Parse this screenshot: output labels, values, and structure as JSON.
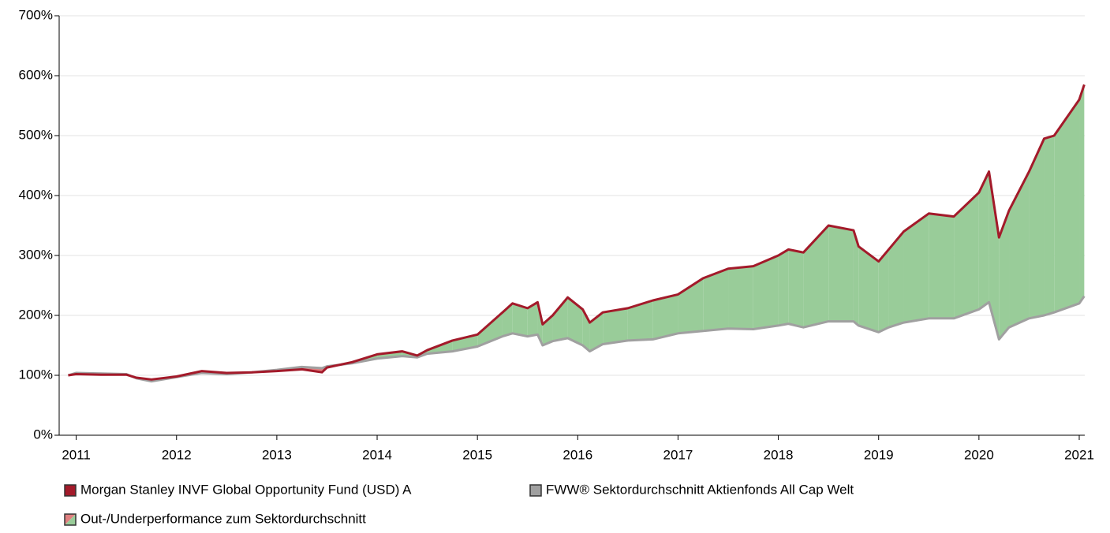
{
  "chart_data": {
    "type": "line",
    "x": [
      2010.92,
      2011.0,
      2011.25,
      2011.5,
      2011.6,
      2011.75,
      2012.0,
      2012.25,
      2012.5,
      2012.75,
      2013.0,
      2013.25,
      2013.45,
      2013.5,
      2013.75,
      2014.0,
      2014.25,
      2014.4,
      2014.5,
      2014.75,
      2015.0,
      2015.25,
      2015.35,
      2015.5,
      2015.6,
      2015.65,
      2015.75,
      2015.9,
      2016.05,
      2016.12,
      2016.25,
      2016.5,
      2016.75,
      2017.0,
      2017.25,
      2017.5,
      2017.75,
      2018.0,
      2018.1,
      2018.25,
      2018.5,
      2018.75,
      2018.8,
      2019.0,
      2019.1,
      2019.25,
      2019.5,
      2019.75,
      2020.0,
      2020.1,
      2020.2,
      2020.3,
      2020.5,
      2020.65,
      2020.75,
      2021.0,
      2021.05
    ],
    "series": [
      {
        "name": "Morgan Stanley INVF Global Opportunity Fund (USD) A",
        "color": "#a31a2a",
        "values": [
          100,
          102,
          101,
          101,
          96,
          93,
          98,
          107,
          104,
          105,
          107,
          110,
          105,
          113,
          122,
          135,
          140,
          133,
          142,
          158,
          168,
          205,
          220,
          212,
          222,
          185,
          200,
          230,
          210,
          188,
          205,
          212,
          225,
          235,
          262,
          278,
          282,
          300,
          310,
          305,
          350,
          342,
          315,
          290,
          310,
          340,
          370,
          365,
          405,
          440,
          330,
          375,
          440,
          495,
          500,
          560,
          585
        ]
      },
      {
        "name": "FWW® Sektordurchschnitt Aktienfonds All Cap Welt",
        "color": "#a0a0a0",
        "values": [
          100,
          104,
          103,
          102,
          95,
          90,
          97,
          104,
          102,
          105,
          109,
          114,
          112,
          115,
          120,
          128,
          132,
          130,
          136,
          140,
          148,
          165,
          170,
          165,
          168,
          150,
          157,
          162,
          150,
          140,
          152,
          158,
          160,
          170,
          174,
          178,
          177,
          183,
          186,
          180,
          190,
          190,
          183,
          172,
          180,
          188,
          195,
          195,
          210,
          222,
          160,
          180,
          195,
          200,
          205,
          220,
          232
        ]
      }
    ],
    "difference": {
      "name": "Out-/Underperformance zum Sektordurchschnitt",
      "colors": [
        "#99cc99",
        "#e08080"
      ]
    },
    "xlim": [
      2010.83,
      2021.055
    ],
    "xticks": [
      2011,
      2012,
      2013,
      2014,
      2015,
      2016,
      2017,
      2018,
      2019,
      2020,
      2021
    ],
    "ylim": [
      0,
      700
    ],
    "yticks": [
      {
        "value": 0,
        "label": "0%"
      },
      {
        "value": 100,
        "label": "100%"
      },
      {
        "value": 200,
        "label": "200%"
      },
      {
        "value": 300,
        "label": "300%"
      },
      {
        "value": 400,
        "label": "400%"
      },
      {
        "value": 500,
        "label": "500%"
      },
      {
        "value": 600,
        "label": "600%"
      },
      {
        "value": 700,
        "label": "700%"
      }
    ],
    "grid": true
  }
}
